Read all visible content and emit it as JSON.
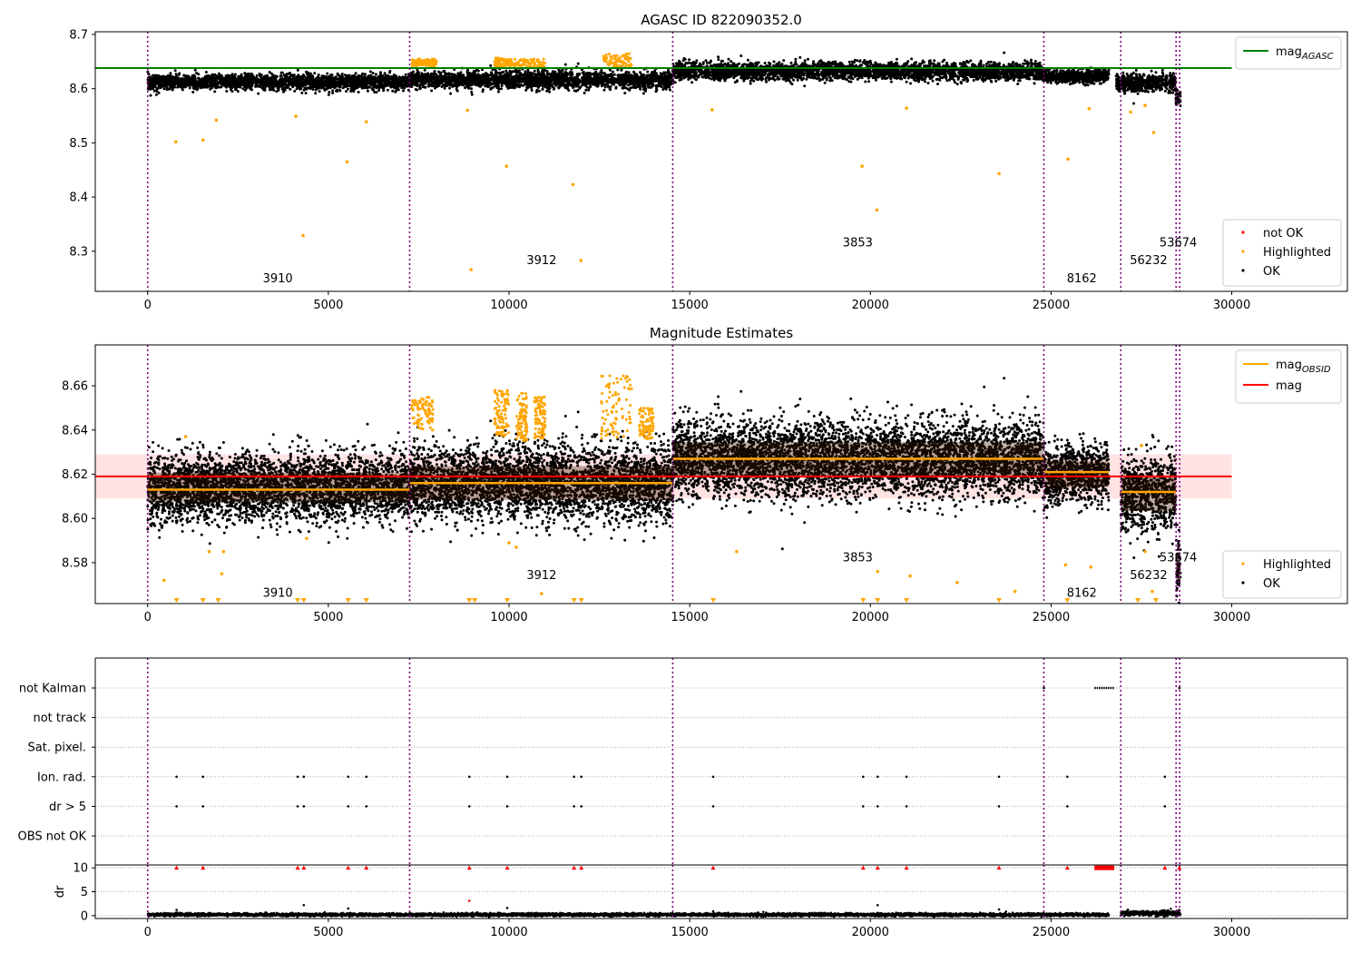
{
  "chart_data": [
    {
      "id": "top",
      "type": "scatter",
      "title": "AGASC ID 822090352.0",
      "xlim": [
        -1450,
        33200
      ],
      "ylim": [
        8.226,
        8.705
      ],
      "xticks": [
        0,
        5000,
        10000,
        15000,
        20000,
        25000,
        30000
      ],
      "xtick_labels": [
        "0",
        "5000",
        "10000",
        "15000",
        "20000",
        "25000",
        "30000"
      ],
      "yticks": [
        8.3,
        8.4,
        8.5,
        8.6,
        8.7
      ],
      "ytick_labels": [
        "8.3",
        "8.4",
        "8.5",
        "8.6",
        "8.7"
      ],
      "reference_lines": [
        {
          "name": "mag_AGASC",
          "legend_label": "mag",
          "legend_sub": "AGASC",
          "y": 8.638,
          "x_range": [
            -1450,
            30000
          ],
          "color": "#008000"
        }
      ],
      "legend_lines_placement": "top-right",
      "legend_points_placement": "bottom-right",
      "legend_points": [
        {
          "label": "not OK",
          "color": "#ff0000"
        },
        {
          "label": "Highlighted",
          "color": "#ffa500"
        },
        {
          "label": "OK",
          "color": "#000000"
        }
      ],
      "segments": [
        {
          "x0": 0,
          "x1": 7250,
          "mean": 8.612,
          "spread": 0.007
        },
        {
          "x0": 7250,
          "x1": 14530,
          "mean": 8.616,
          "spread": 0.008
        },
        {
          "x0": 14530,
          "x1": 24800,
          "mean": 8.632,
          "spread": 0.008
        },
        {
          "x0": 24800,
          "x1": 26600,
          "mean": 8.623,
          "spread": 0.006
        },
        {
          "x0": 26800,
          "x1": 28450,
          "mean": 8.611,
          "spread": 0.008
        },
        {
          "x0": 28450,
          "x1": 28580,
          "mean": 8.582,
          "spread": 0.008
        }
      ],
      "highlight_clusters": [
        {
          "x0": 7300,
          "x1": 8000,
          "y0": 8.64,
          "y1": 8.655
        },
        {
          "x0": 9600,
          "x1": 10000,
          "y0": 8.64,
          "y1": 8.657
        },
        {
          "x0": 10000,
          "x1": 11000,
          "y0": 8.64,
          "y1": 8.655
        },
        {
          "x0": 12600,
          "x1": 13400,
          "y0": 8.64,
          "y1": 8.665
        }
      ],
      "highlighted_outliers": [
        {
          "x": 780,
          "y": 8.502
        },
        {
          "x": 1530,
          "y": 8.505
        },
        {
          "x": 1900,
          "y": 8.542
        },
        {
          "x": 4100,
          "y": 8.549
        },
        {
          "x": 4300,
          "y": 8.329
        },
        {
          "x": 5520,
          "y": 8.465
        },
        {
          "x": 6050,
          "y": 8.539
        },
        {
          "x": 8850,
          "y": 8.56
        },
        {
          "x": 8950,
          "y": 8.266
        },
        {
          "x": 9930,
          "y": 8.457
        },
        {
          "x": 11770,
          "y": 8.423
        },
        {
          "x": 11990,
          "y": 8.283
        },
        {
          "x": 15620,
          "y": 8.561
        },
        {
          "x": 19770,
          "y": 8.457
        },
        {
          "x": 20180,
          "y": 8.376
        },
        {
          "x": 21000,
          "y": 8.564
        },
        {
          "x": 23560,
          "y": 8.443
        },
        {
          "x": 25470,
          "y": 8.47
        },
        {
          "x": 26050,
          "y": 8.563
        },
        {
          "x": 27840,
          "y": 8.519
        },
        {
          "x": 27200,
          "y": 8.557
        },
        {
          "x": 27600,
          "y": 8.569
        }
      ],
      "obsid_boundaries": [
        0,
        7250,
        14530,
        24800,
        26930,
        28460,
        28560
      ],
      "obsid_labels": [
        {
          "text": "3910",
          "x": 3600,
          "y": 8.243
        },
        {
          "text": "3912",
          "x": 10900,
          "y": 8.276
        },
        {
          "text": "3853",
          "x": 19650,
          "y": 8.309
        },
        {
          "text": "8162",
          "x": 25850,
          "y": 8.243
        },
        {
          "text": "56232",
          "x": 27700,
          "y": 8.276
        },
        {
          "text": "53674",
          "x": 28520,
          "y": 8.309
        }
      ]
    },
    {
      "id": "middle",
      "type": "scatter",
      "title": "Magnitude Estimates",
      "xlim": [
        -1450,
        33200
      ],
      "ylim": [
        8.5615,
        8.6785
      ],
      "xticks": [
        0,
        5000,
        10000,
        15000,
        20000,
        25000,
        30000
      ],
      "xtick_labels": [
        "0",
        "5000",
        "10000",
        "15000",
        "20000",
        "25000",
        "30000"
      ],
      "yticks": [
        8.58,
        8.6,
        8.62,
        8.64,
        8.66
      ],
      "ytick_labels": [
        "8.58",
        "8.60",
        "8.62",
        "8.64",
        "8.66"
      ],
      "reference_lines": [
        {
          "name": "mag_OBSID",
          "legend_label": "mag",
          "legend_sub": "OBSID",
          "color": "#ffa500"
        },
        {
          "name": "mag",
          "legend_label": "mag",
          "legend_sub": "",
          "y": 8.619,
          "x_range": [
            -1450,
            30000
          ],
          "color": "#ff0000"
        }
      ],
      "mag_band": {
        "y0": 8.609,
        "y1": 8.629,
        "x_range": [
          -1450,
          30000
        ],
        "color": "#ffcccc"
      },
      "obsid_means": [
        {
          "x0": 0,
          "x1": 7250,
          "y": 8.613
        },
        {
          "x0": 7250,
          "x1": 14530,
          "y": 8.616
        },
        {
          "x0": 14530,
          "x1": 24800,
          "y": 8.627
        },
        {
          "x0": 24800,
          "x1": 26600,
          "y": 8.621
        },
        {
          "x0": 26930,
          "x1": 28460,
          "y": 8.612
        }
      ],
      "legend_lines_placement": "top-right",
      "legend_points_placement": "bottom-right",
      "legend_points": [
        {
          "label": "Highlighted",
          "color": "#ffa500"
        },
        {
          "label": "OK",
          "color": "#000000"
        }
      ],
      "segments": [
        {
          "x0": 0,
          "x1": 7250,
          "mean": 8.614,
          "spread": 0.0075
        },
        {
          "x0": 7250,
          "x1": 14530,
          "mean": 8.616,
          "spread": 0.0085
        },
        {
          "x0": 14530,
          "x1": 24800,
          "mean": 8.627,
          "spread": 0.0085
        },
        {
          "x0": 24800,
          "x1": 26600,
          "mean": 8.62,
          "spread": 0.0065
        },
        {
          "x0": 26930,
          "x1": 28460,
          "mean": 8.611,
          "spread": 0.0085
        },
        {
          "x0": 28460,
          "x1": 28580,
          "mean": 8.578,
          "spread": 0.007
        }
      ],
      "highlight_clusters": [
        {
          "x0": 7300,
          "x1": 7900,
          "y0": 8.64,
          "y1": 8.655
        },
        {
          "x0": 9600,
          "x1": 10000,
          "y0": 8.637,
          "y1": 8.658
        },
        {
          "x0": 10200,
          "x1": 10500,
          "y0": 8.635,
          "y1": 8.657
        },
        {
          "x0": 10700,
          "x1": 11000,
          "y0": 8.636,
          "y1": 8.655
        },
        {
          "x0": 12550,
          "x1": 13400,
          "y0": 8.636,
          "y1": 8.665
        },
        {
          "x0": 13600,
          "x1": 14000,
          "y0": 8.636,
          "y1": 8.65
        }
      ],
      "highlighted_outliers": [
        {
          "x": 450,
          "y": 8.572
        },
        {
          "x": 1050,
          "y": 8.637
        },
        {
          "x": 1700,
          "y": 8.585
        },
        {
          "x": 2050,
          "y": 8.575
        },
        {
          "x": 2100,
          "y": 8.585
        },
        {
          "x": 4400,
          "y": 8.591
        },
        {
          "x": 10000,
          "y": 8.589
        },
        {
          "x": 10200,
          "y": 8.587
        },
        {
          "x": 10900,
          "y": 8.566
        },
        {
          "x": 16300,
          "y": 8.585
        },
        {
          "x": 20200,
          "y": 8.576
        },
        {
          "x": 21100,
          "y": 8.574
        },
        {
          "x": 22400,
          "y": 8.571
        },
        {
          "x": 24000,
          "y": 8.567
        },
        {
          "x": 25400,
          "y": 8.579
        },
        {
          "x": 26100,
          "y": 8.578
        },
        {
          "x": 27600,
          "y": 8.585
        },
        {
          "x": 27800,
          "y": 8.567
        },
        {
          "x": 27500,
          "y": 8.633
        }
      ],
      "clipped_markers_x": [
        800,
        1530,
        1950,
        4150,
        4320,
        5550,
        6050,
        8900,
        9050,
        9950,
        11800,
        12000,
        15650,
        19800,
        20200,
        21000,
        23560,
        25450,
        27400,
        27900
      ],
      "obsid_boundaries": [
        0,
        7250,
        14530,
        24800,
        26930,
        28460,
        28560
      ],
      "obsid_labels": [
        {
          "text": "3910",
          "x": 3600,
          "y": 8.5645
        },
        {
          "text": "3912",
          "x": 10900,
          "y": 8.5725
        },
        {
          "text": "3853",
          "x": 19650,
          "y": 8.5805
        },
        {
          "text": "8162",
          "x": 25850,
          "y": 8.5645
        },
        {
          "text": "56232",
          "x": 27700,
          "y": 8.5725
        },
        {
          "text": "53674",
          "x": 28520,
          "y": 8.5805
        }
      ]
    },
    {
      "id": "flags",
      "type": "scatter",
      "xlim": [
        -1450,
        33200
      ],
      "flag_rows": [
        "not Kalman",
        "not track",
        "Sat. pixel.",
        "Ion. rad.",
        "dr > 5",
        "OBS not OK"
      ],
      "flag_events": {
        "not Kalman": {
          "points": [
            24800,
            28550
          ],
          "ranges": [
            [
              26200,
              26750
            ]
          ]
        },
        "not track": {
          "points": [],
          "ranges": []
        },
        "Sat. pixel.": {
          "points": [],
          "ranges": []
        },
        "Ion. rad.": {
          "points": [
            800,
            1530,
            4150,
            4320,
            5550,
            6050,
            8900,
            9950,
            11800,
            12000,
            15650,
            19800,
            20200,
            21000,
            23560,
            25450,
            28150
          ],
          "ranges": []
        },
        "dr > 5": {
          "points": [
            800,
            1530,
            4150,
            4320,
            5550,
            6050,
            8900,
            9950,
            11800,
            12000,
            15650,
            19800,
            20200,
            21000,
            23560,
            25450,
            28150
          ],
          "ranges": []
        },
        "OBS not OK": {
          "points": [],
          "ranges": []
        }
      },
      "obsid_boundaries": [
        0,
        7250,
        14530,
        24800,
        26930,
        28460,
        28560
      ]
    },
    {
      "id": "dr",
      "type": "scatter",
      "ylabel": "dr",
      "xlim": [
        -1450,
        33200
      ],
      "ylim": [
        -0.6,
        10.6
      ],
      "xticks": [
        0,
        5000,
        10000,
        15000,
        20000,
        25000,
        30000
      ],
      "xtick_labels": [
        "0",
        "5000",
        "10000",
        "15000",
        "20000",
        "25000",
        "30000"
      ],
      "yticks": [
        0,
        5,
        10
      ],
      "ytick_labels": [
        "0",
        "5",
        "10"
      ],
      "segments": [
        {
          "x0": 0,
          "x1": 26600,
          "mean": 0.2,
          "spread": 0.15
        },
        {
          "x0": 26930,
          "x1": 28580,
          "mean": 0.5,
          "spread": 0.25
        }
      ],
      "clipped_points_x": [
        800,
        1530,
        4150,
        4320,
        5550,
        6050,
        8900,
        9950,
        11800,
        12000,
        15650,
        19800,
        20200,
        21000,
        23560,
        25450,
        28150,
        28550
      ],
      "clipped_range": [
        26200,
        26750
      ],
      "isolated_points": [
        {
          "x": 800,
          "y": 1.2,
          "color": "#000000"
        },
        {
          "x": 4320,
          "y": 2.2,
          "color": "#000000"
        },
        {
          "x": 5550,
          "y": 1.5,
          "color": "#000000"
        },
        {
          "x": 8900,
          "y": 3.1,
          "color": "#ff0000"
        },
        {
          "x": 9950,
          "y": 1.6,
          "color": "#000000"
        },
        {
          "x": 20200,
          "y": 2.2,
          "color": "#000000"
        },
        {
          "x": 23560,
          "y": 1.3,
          "color": "#000000"
        },
        {
          "x": 15650,
          "y": 0.9,
          "color": "#000000"
        }
      ],
      "obsid_boundaries": [
        0,
        7250,
        14530,
        24800,
        26930,
        28460,
        28560
      ]
    }
  ]
}
